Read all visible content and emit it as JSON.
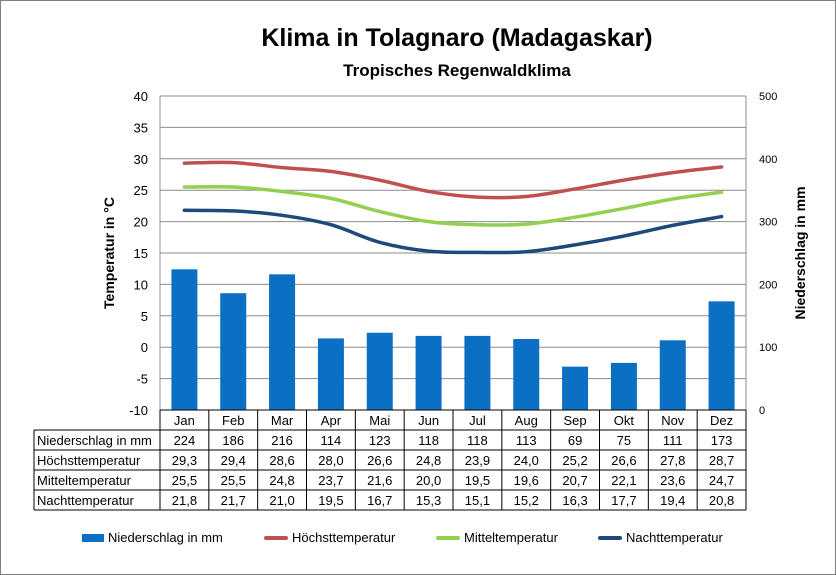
{
  "chart_data": {
    "type": "bar+line",
    "title": "Klima in Tolagnaro (Madagaskar)",
    "subtitle": "Tropisches Regenwaldklima",
    "ylabel_left": "Temperatur in °C",
    "ylabel_right": "Niederschlag in mm",
    "ylim_left": [
      -10,
      40
    ],
    "ylim_right": [
      0,
      500
    ],
    "yticks_left": [
      "40",
      "35",
      "30",
      "25",
      "20",
      "15",
      "10",
      "5",
      "0",
      "-5",
      "-10"
    ],
    "yticks_right": [
      "500",
      "400",
      "300",
      "200",
      "100",
      "0"
    ],
    "grid": true,
    "legend_position": "bottom",
    "categories": [
      "Jan",
      "Feb",
      "Mar",
      "Apr",
      "Mai",
      "Jun",
      "Jul",
      "Aug",
      "Sep",
      "Okt",
      "Nov",
      "Dez"
    ],
    "series": [
      {
        "name": "Niederschlag in mm",
        "kind": "bar",
        "axis": "right",
        "color": "#0b6fc4",
        "values": [
          224,
          186,
          216,
          114,
          123,
          118,
          118,
          113,
          69,
          75,
          111,
          173
        ],
        "labels": [
          "224",
          "186",
          "216",
          "114",
          "123",
          "118",
          "118",
          "113",
          "69",
          "75",
          "111",
          "173"
        ]
      },
      {
        "name": "Höchsttemperatur",
        "kind": "line",
        "axis": "left",
        "color": "#c0504d",
        "values": [
          29.3,
          29.4,
          28.6,
          28.0,
          26.6,
          24.8,
          23.9,
          24.0,
          25.2,
          26.6,
          27.8,
          28.7
        ],
        "labels": [
          "29,3",
          "29,4",
          "28,6",
          "28,0",
          "26,6",
          "24,8",
          "23,9",
          "24,0",
          "25,2",
          "26,6",
          "27,8",
          "28,7"
        ]
      },
      {
        "name": "Mitteltemperatur",
        "kind": "line",
        "axis": "left",
        "color": "#92d050",
        "values": [
          25.5,
          25.5,
          24.8,
          23.7,
          21.6,
          20.0,
          19.5,
          19.6,
          20.7,
          22.1,
          23.6,
          24.7
        ],
        "labels": [
          "25,5",
          "25,5",
          "24,8",
          "23,7",
          "21,6",
          "20,0",
          "19,5",
          "19,6",
          "20,7",
          "22,1",
          "23,6",
          "24,7"
        ]
      },
      {
        "name": "Nachttemperatur",
        "kind": "line",
        "axis": "left",
        "color": "#1f497d",
        "values": [
          21.8,
          21.7,
          21.0,
          19.5,
          16.7,
          15.3,
          15.1,
          15.2,
          16.3,
          17.7,
          19.4,
          20.8
        ],
        "labels": [
          "21,8",
          "21,7",
          "21,0",
          "19,5",
          "16,7",
          "15,3",
          "15,1",
          "15,2",
          "16,3",
          "17,7",
          "19,4",
          "20,8"
        ]
      }
    ]
  }
}
